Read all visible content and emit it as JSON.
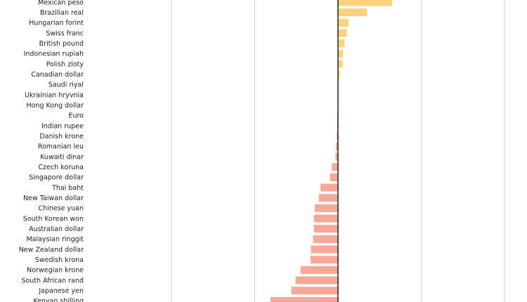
{
  "chart_data": {
    "type": "bar",
    "orientation": "horizontal",
    "categories": [
      "Mexican peso",
      "Brazilian real",
      "Hungarian forint",
      "Swiss franc",
      "British pound",
      "Indonesian rupiah",
      "Polish zloty",
      "Canadian dollar",
      "Saudi riyal",
      "Ukrainian hryvnia",
      "Hong Kong dollar",
      "Euro",
      "Indian rupee",
      "Danish krone",
      "Romanian leu",
      "Kuwaiti dinar",
      "Czech koruna",
      "Singapore dollar",
      "Thai baht",
      "New Taiwan dollar",
      "Chinese yuan",
      "South Korean won",
      "Australian dollar",
      "Malaysian ringgit",
      "New Zealand dollar",
      "Swedish krona",
      "Norwegian krone",
      "South African rand",
      "Japanese yen",
      "Kenyan shilling"
    ],
    "values": [
      6.5,
      3.5,
      1.25,
      1.05,
      0.8,
      0.6,
      0.55,
      0.2,
      0.0,
      0.0,
      0.0,
      -0.1,
      -0.1,
      -0.15,
      -0.25,
      -0.3,
      -0.75,
      -0.95,
      -2.1,
      -2.3,
      -2.8,
      -2.9,
      -2.9,
      -3.0,
      -3.25,
      -3.3,
      -4.5,
      -5.1,
      -5.6,
      -8.1
    ],
    "xlim": [
      -20,
      20
    ],
    "grid_x": [
      -20,
      -10,
      0,
      10,
      20
    ],
    "colors": {
      "positive": "#fdd27a",
      "negative": "#f8a897",
      "zero_line": "#000000",
      "grid": "#d6d6d6"
    }
  }
}
